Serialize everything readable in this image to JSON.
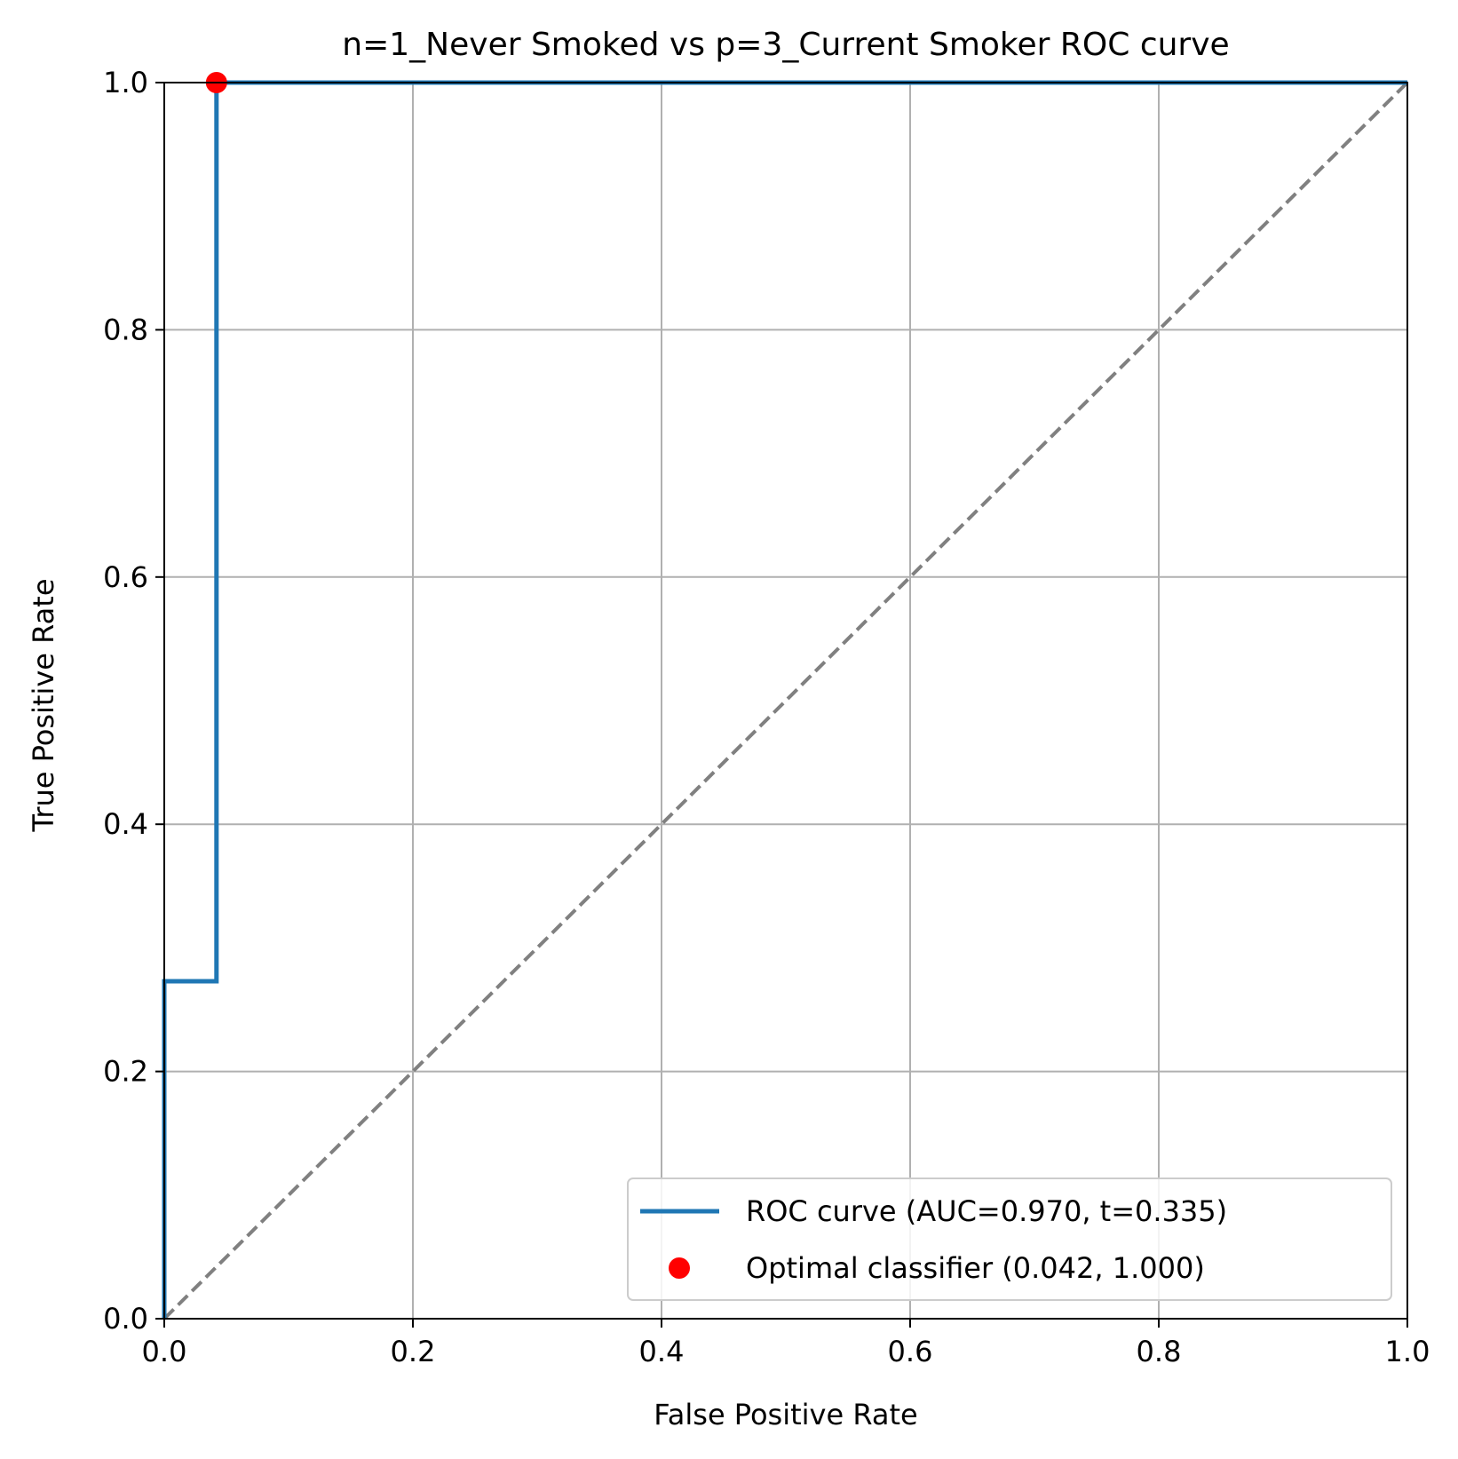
{
  "chart_data": {
    "type": "line",
    "title": "n=1_Never Smoked vs p=3_Current Smoker ROC curve",
    "xlabel": "False Positive Rate",
    "ylabel": "True Positive Rate",
    "xlim": [
      0.0,
      1.0
    ],
    "ylim": [
      0.0,
      1.0
    ],
    "x_ticks": [
      "0.0",
      "0.2",
      "0.4",
      "0.6",
      "0.8",
      "1.0"
    ],
    "y_ticks": [
      "0.0",
      "0.2",
      "0.4",
      "0.6",
      "0.8",
      "1.0"
    ],
    "grid": true,
    "legend_position": "lower-right",
    "series": [
      {
        "name": "ROC curve (AUC=0.970, t=0.335)",
        "color": "#1f77b4",
        "style": "solid-step",
        "x": [
          0.0,
          0.0,
          0.042,
          0.042,
          1.0
        ],
        "y": [
          0.0,
          0.273,
          0.273,
          1.0,
          1.0
        ]
      },
      {
        "name": "Optimal classifier (0.042, 1.000)",
        "color": "#ff0000",
        "style": "marker",
        "x": [
          0.042
        ],
        "y": [
          1.0
        ]
      }
    ],
    "reference_line": {
      "color": "#808080",
      "style": "dashed",
      "x": [
        0.0,
        1.0
      ],
      "y": [
        0.0,
        1.0
      ]
    }
  }
}
